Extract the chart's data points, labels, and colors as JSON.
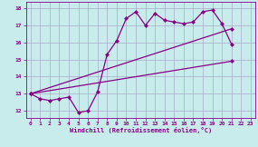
{
  "xlabel": "Windchill (Refroidissement éolien,°C)",
  "bg_color": "#c8ecec",
  "grid_color": "#aaaacc",
  "line_color": "#880088",
  "xlim": [
    -0.5,
    23.5
  ],
  "ylim": [
    11.6,
    18.4
  ],
  "yticks": [
    12,
    13,
    14,
    15,
    16,
    17,
    18
  ],
  "xticks": [
    0,
    1,
    2,
    3,
    4,
    5,
    6,
    7,
    8,
    9,
    10,
    11,
    12,
    13,
    14,
    15,
    16,
    17,
    18,
    19,
    20,
    21,
    22,
    23
  ],
  "series1_x": [
    0,
    1,
    2,
    3,
    4,
    5,
    6,
    7,
    8,
    9,
    10,
    11,
    12,
    13,
    14,
    15,
    16,
    17,
    18,
    19,
    20,
    21
  ],
  "series1_y": [
    13.0,
    12.7,
    12.6,
    12.7,
    12.8,
    11.9,
    12.0,
    13.1,
    15.3,
    16.1,
    17.4,
    17.8,
    17.0,
    17.7,
    17.3,
    17.2,
    17.1,
    17.2,
    17.8,
    17.9,
    17.1,
    15.9
  ],
  "series2_x": [
    0,
    21
  ],
  "series2_y": [
    13.0,
    14.9
  ],
  "series3_x": [
    0,
    21
  ],
  "series3_y": [
    13.0,
    16.8
  ],
  "marker": "D",
  "marker_size": 2.2,
  "line_width": 0.9
}
